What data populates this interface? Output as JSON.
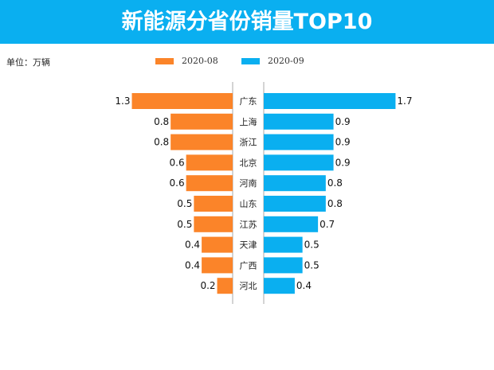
{
  "title": "新能源分省份销量TOP10",
  "unit_label": "单位：万辆",
  "colors": {
    "header": "#0aaff0",
    "2020-08": "#fb8429",
    "2020-09": "#0aaff0"
  },
  "chart_data": {
    "type": "bar",
    "layout": "butterfly",
    "categories": [
      "广东",
      "上海",
      "浙江",
      "北京",
      "河南",
      "山东",
      "江苏",
      "天津",
      "广西",
      "河北"
    ],
    "series": [
      {
        "name": "2020-08",
        "values": [
          1.3,
          0.8,
          0.8,
          0.6,
          0.6,
          0.5,
          0.5,
          0.4,
          0.4,
          0.2
        ]
      },
      {
        "name": "2020-09",
        "values": [
          1.7,
          0.9,
          0.9,
          0.9,
          0.8,
          0.8,
          0.7,
          0.5,
          0.5,
          0.4
        ]
      }
    ],
    "legend": "top"
  }
}
